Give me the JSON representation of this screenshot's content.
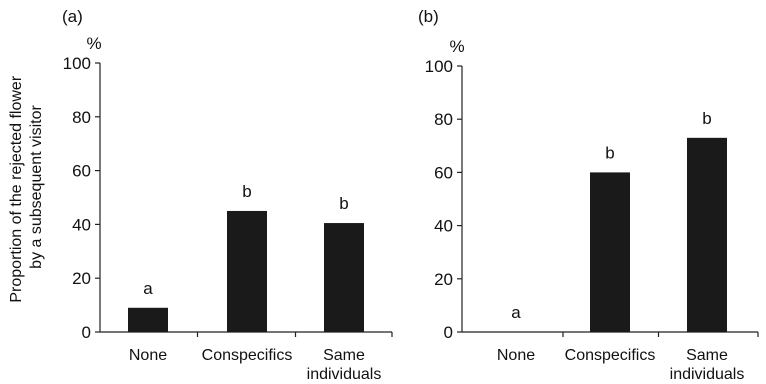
{
  "chart_data": [
    {
      "type": "bar",
      "panel_label": "(a)",
      "unit_label": "%",
      "ylabel": "Proportion of the rejected flower by a subsequent visitor",
      "ylabel_lines": [
        "Proportion of the rejected flower",
        "by a subsequent visitor"
      ],
      "categories": [
        "None",
        "Conspecifics",
        "Same individuals"
      ],
      "category_lines": [
        [
          "None"
        ],
        [
          "Conspecifics"
        ],
        [
          "Same",
          "individuals"
        ]
      ],
      "values": [
        9,
        45,
        40.5
      ],
      "significance_letters": [
        "a",
        "b",
        "b"
      ],
      "ylim": [
        0,
        100
      ],
      "yticks": [
        0,
        20,
        40,
        60,
        80,
        100
      ],
      "bar_color": "#1a1a1a",
      "grid": false
    },
    {
      "type": "bar",
      "panel_label": "(b)",
      "unit_label": "%",
      "ylabel": "",
      "categories": [
        "None",
        "Conspecifics",
        "Same individuals"
      ],
      "category_lines": [
        [
          "None"
        ],
        [
          "Conspecifics"
        ],
        [
          "Same",
          "individuals"
        ]
      ],
      "values": [
        0,
        60,
        73
      ],
      "significance_letters": [
        "a",
        "b",
        "b"
      ],
      "ylim": [
        0,
        100
      ],
      "yticks": [
        0,
        20,
        40,
        60,
        80,
        100
      ],
      "bar_color": "#1a1a1a",
      "grid": false
    }
  ]
}
